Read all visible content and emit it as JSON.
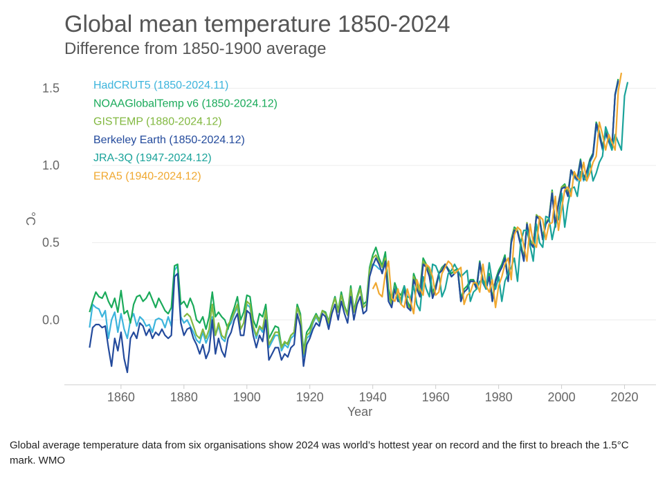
{
  "caption": "Global average temperature data from six organisations show 2024 was world’s hottest year on record and the first to breach the 1.5°C mark. WMO",
  "chart_data": {
    "type": "line",
    "title": "Global mean temperature 1850-2024",
    "subtitle": "Difference from 1850-1900 average",
    "xlabel": "Year",
    "ylabel": "°C",
    "xlim": [
      1842,
      2030
    ],
    "ylim": [
      -0.42,
      1.65
    ],
    "xticks": [
      1860,
      1880,
      1900,
      1920,
      1940,
      1960,
      1980,
      2000,
      2020
    ],
    "yticks": [
      0.0,
      0.5,
      1.0,
      1.5
    ],
    "ytick_labels": [
      "0.0",
      "0.5",
      "1.0",
      "1.5"
    ],
    "grid": "horizontal",
    "legend_position": "top-left",
    "series": [
      {
        "name": "HadCRUT5 (1850-2024.11)",
        "color": "#3cb4dc",
        "start": 1850,
        "values": [
          -0.05,
          0.1,
          0.08,
          0.07,
          0.02,
          0.06,
          -0.12,
          0.0,
          0.05,
          -0.08,
          0.04,
          -0.06,
          -0.12,
          0.0,
          0.04,
          -0.04,
          0.02,
          0.0,
          -0.04,
          -0.03,
          -0.08,
          0.0,
          0.01,
          0.0,
          -0.05,
          0.02,
          -0.04,
          0.32,
          0.35,
          0.02,
          -0.02,
          0.0,
          -0.04,
          -0.08,
          -0.13,
          -0.15,
          -0.08,
          -0.15,
          -0.1,
          0.02,
          -0.1,
          -0.04,
          -0.12,
          -0.14,
          -0.05,
          -0.02,
          0.04,
          0.08,
          -0.06,
          -0.02,
          0.1,
          0.08,
          -0.05,
          -0.12,
          -0.05,
          -0.08,
          0.05,
          -0.18,
          -0.14,
          -0.1,
          -0.1,
          -0.2,
          -0.16,
          -0.18,
          -0.12,
          -0.1,
          0.08,
          0.02,
          -0.24,
          -0.12,
          -0.1,
          -0.02,
          0.02,
          -0.02,
          0.06,
          0.04,
          -0.04,
          0.08,
          0.15,
          0.05,
          0.16,
          0.08,
          0.03,
          0.2,
          0.05,
          0.14,
          0.2,
          0.08,
          0.1,
          0.32,
          0.36,
          0.35,
          0.33,
          0.32,
          0.36,
          0.15,
          0.1,
          0.22,
          0.15,
          0.14,
          0.22,
          0.1,
          0.06,
          0.28,
          0.2,
          0.15,
          0.36,
          0.35,
          0.3,
          0.15,
          0.2,
          0.3,
          0.32,
          0.36,
          0.32,
          0.28,
          0.3,
          0.32,
          0.12,
          0.18,
          0.2,
          0.25,
          0.25,
          0.2,
          0.37,
          0.24,
          0.2,
          0.28,
          0.12,
          0.25,
          0.3,
          0.34,
          0.4,
          0.25,
          0.5,
          0.58,
          0.58,
          0.48,
          0.38,
          0.62,
          0.5,
          0.47,
          0.67,
          0.66,
          0.52,
          0.62,
          0.65,
          0.82,
          0.6,
          0.75,
          0.85,
          0.86,
          0.8,
          0.96,
          0.92,
          0.9,
          1.02,
          0.9,
          0.95,
          1.02,
          1.06,
          1.25,
          1.19,
          1.1,
          1.2,
          1.15,
          1.1,
          1.45,
          1.54
        ]
      },
      {
        "name": "NOAAGlobalTemp v6 (1850-2024.12)",
        "color": "#1aaa5a",
        "start": 1850,
        "values": [
          0.05,
          0.12,
          0.18,
          0.15,
          0.14,
          0.18,
          0.12,
          0.08,
          0.14,
          0.05,
          0.19,
          0.04,
          0.06,
          -0.02,
          0.1,
          0.15,
          0.16,
          0.12,
          0.14,
          0.18,
          0.13,
          0.08,
          0.14,
          0.1,
          0.06,
          0.04,
          0.08,
          0.35,
          0.36,
          0.1,
          0.12,
          0.08,
          0.14,
          0.09,
          0.0,
          -0.02,
          0.02,
          -0.06,
          0.02,
          0.18,
          0.02,
          0.05,
          0.02,
          0.0,
          -0.06,
          0.02,
          0.08,
          0.15,
          0.0,
          0.05,
          0.16,
          0.15,
          0.0,
          -0.05,
          0.04,
          0.02,
          0.1,
          -0.12,
          -0.08,
          -0.04,
          -0.05,
          -0.17,
          -0.15,
          -0.15,
          -0.1,
          -0.08,
          0.1,
          0.04,
          -0.2,
          -0.08,
          -0.05,
          0.0,
          0.04,
          0.0,
          0.06,
          0.05,
          -0.01,
          0.08,
          0.15,
          0.06,
          0.18,
          0.09,
          0.04,
          0.22,
          0.06,
          0.15,
          0.22,
          0.1,
          0.12,
          0.34,
          0.42,
          0.47,
          0.4,
          0.35,
          0.44,
          0.2,
          0.12,
          0.24,
          0.18,
          0.16,
          0.22,
          0.12,
          0.08,
          0.3,
          0.24,
          0.2,
          0.4,
          0.36,
          0.32,
          0.18,
          0.22,
          0.3,
          0.34,
          0.36,
          0.33,
          0.3,
          0.32,
          0.33,
          0.14,
          0.2,
          0.22,
          0.26,
          0.26,
          0.22,
          0.38,
          0.26,
          0.22,
          0.3,
          0.14,
          0.26,
          0.32,
          0.36,
          0.42,
          0.26,
          0.52,
          0.6,
          0.58,
          0.5,
          0.4,
          0.62,
          0.52,
          0.48,
          0.68,
          0.66,
          0.54,
          0.62,
          0.66,
          0.84,
          0.62,
          0.76,
          0.86,
          0.88,
          0.82,
          0.97,
          0.94,
          0.92,
          1.04,
          0.92,
          0.96,
          1.04,
          1.08,
          1.28,
          1.22,
          1.12,
          1.22,
          1.16,
          1.12,
          1.46,
          1.56
        ]
      },
      {
        "name": "GISTEMP (1880-2024.12)",
        "color": "#82b840",
        "start": 1880,
        "values": [
          0.02,
          0.04,
          0.02,
          -0.04,
          -0.1,
          -0.12,
          -0.06,
          -0.12,
          -0.06,
          0.1,
          -0.1,
          -0.02,
          -0.1,
          -0.12,
          -0.03,
          0.0,
          0.05,
          0.1,
          -0.06,
          -0.02,
          0.12,
          0.1,
          -0.04,
          -0.1,
          -0.04,
          -0.06,
          0.06,
          -0.16,
          -0.12,
          -0.08,
          -0.08,
          -0.18,
          -0.14,
          -0.16,
          -0.1,
          -0.08,
          0.08,
          0.02,
          -0.22,
          -0.1,
          -0.08,
          -0.01,
          0.03,
          -0.01,
          0.06,
          0.04,
          -0.02,
          0.08,
          0.14,
          0.05,
          0.16,
          0.08,
          0.03,
          0.2,
          0.05,
          0.14,
          0.2,
          0.08,
          0.1,
          0.32,
          0.4,
          0.42,
          0.38,
          0.34,
          0.4,
          0.16,
          0.1,
          0.22,
          0.15,
          0.14,
          0.22,
          0.1,
          0.06,
          0.28,
          0.22,
          0.17,
          0.38,
          0.35,
          0.3,
          0.16,
          0.2,
          0.3,
          0.33,
          0.36,
          0.32,
          0.28,
          0.3,
          0.32,
          0.12,
          0.18,
          0.2,
          0.25,
          0.25,
          0.2,
          0.37,
          0.24,
          0.2,
          0.28,
          0.12,
          0.25,
          0.3,
          0.34,
          0.4,
          0.25,
          0.51,
          0.59,
          0.58,
          0.49,
          0.39,
          0.63,
          0.51,
          0.48,
          0.68,
          0.66,
          0.53,
          0.63,
          0.66,
          0.83,
          0.61,
          0.76,
          0.86,
          0.87,
          0.81,
          0.97,
          0.93,
          0.91,
          1.03,
          0.91,
          0.96,
          1.03,
          1.07,
          1.27,
          1.21,
          1.11,
          1.21,
          1.16,
          1.11,
          1.46,
          1.55
        ]
      },
      {
        "name": "Berkeley Earth (1850-2024.12)",
        "color": "#234a9c",
        "start": 1850,
        "values": [
          -0.18,
          -0.05,
          -0.03,
          -0.03,
          -0.05,
          -0.04,
          -0.18,
          -0.3,
          -0.12,
          -0.2,
          -0.08,
          -0.25,
          -0.34,
          -0.12,
          -0.08,
          -0.12,
          -0.02,
          -0.04,
          -0.1,
          -0.06,
          -0.12,
          -0.08,
          -0.1,
          -0.06,
          -0.1,
          -0.12,
          -0.1,
          0.28,
          0.3,
          -0.02,
          -0.1,
          -0.06,
          -0.05,
          -0.12,
          -0.16,
          -0.22,
          -0.16,
          -0.25,
          -0.2,
          0.0,
          -0.22,
          -0.12,
          -0.2,
          -0.24,
          -0.12,
          -0.08,
          0.0,
          0.04,
          -0.1,
          -0.1,
          0.06,
          0.04,
          -0.1,
          -0.18,
          -0.1,
          -0.14,
          0.0,
          -0.26,
          -0.22,
          -0.18,
          -0.18,
          -0.26,
          -0.22,
          -0.24,
          -0.18,
          -0.16,
          0.04,
          -0.04,
          -0.3,
          -0.16,
          -0.12,
          -0.06,
          -0.02,
          -0.04,
          0.04,
          0.02,
          -0.06,
          0.04,
          0.1,
          0.0,
          0.12,
          0.04,
          -0.02,
          0.15,
          0.0,
          0.1,
          0.15,
          0.04,
          0.06,
          0.28,
          0.35,
          0.4,
          0.36,
          0.3,
          0.38,
          0.12,
          0.08,
          0.2,
          0.12,
          0.12,
          0.2,
          0.08,
          0.06,
          0.26,
          0.2,
          0.15,
          0.36,
          0.34,
          0.28,
          0.14,
          0.2,
          0.3,
          0.32,
          0.36,
          0.32,
          0.28,
          0.3,
          0.32,
          0.12,
          0.18,
          0.2,
          0.25,
          0.25,
          0.2,
          0.37,
          0.24,
          0.2,
          0.28,
          0.12,
          0.25,
          0.3,
          0.34,
          0.4,
          0.25,
          0.5,
          0.58,
          0.57,
          0.48,
          0.38,
          0.62,
          0.5,
          0.47,
          0.67,
          0.65,
          0.52,
          0.62,
          0.65,
          0.82,
          0.6,
          0.75,
          0.85,
          0.86,
          0.8,
          0.97,
          0.93,
          0.91,
          1.03,
          0.91,
          0.96,
          1.03,
          1.07,
          1.27,
          1.2,
          1.11,
          1.21,
          1.16,
          1.11,
          1.46,
          1.55
        ]
      },
      {
        "name": "JRA-3Q (1947-2024.12)",
        "color": "#1aa39a",
        "start": 1947,
        "values": [
          0.22,
          0.14,
          0.1,
          0.22,
          0.15,
          0.14,
          0.22,
          0.1,
          0.06,
          0.28,
          0.2,
          0.15,
          0.36,
          0.35,
          0.3,
          0.15,
          0.2,
          0.3,
          0.32,
          0.36,
          0.32,
          0.28,
          0.3,
          0.32,
          0.12,
          0.18,
          0.2,
          0.25,
          0.25,
          0.2,
          0.37,
          0.24,
          0.2,
          0.28,
          0.12,
          0.25,
          0.3,
          0.34,
          0.4,
          0.25,
          0.5,
          0.58,
          0.58,
          0.48,
          0.38,
          0.62,
          0.5,
          0.47,
          0.67,
          0.66,
          0.52,
          0.62,
          0.65,
          0.82,
          0.6,
          0.75,
          0.85,
          0.86,
          0.8,
          0.96,
          0.92,
          0.9,
          1.02,
          0.9,
          0.95,
          1.02,
          1.06,
          1.25,
          1.19,
          1.1,
          1.2,
          1.15,
          1.1,
          1.45,
          1.54
        ]
      },
      {
        "name": "ERA5 (1940-2024.12)",
        "color": "#f0a830",
        "start": 1940,
        "values": [
          0.2,
          0.24,
          0.17,
          0.15,
          0.3,
          0.38,
          0.14,
          0.12,
          0.2,
          0.1,
          0.08,
          0.2,
          0.12,
          0.04,
          0.26,
          0.2,
          0.16,
          0.36,
          0.34,
          0.28,
          0.16,
          0.18,
          0.3,
          0.34,
          0.38,
          0.36,
          0.3,
          0.32,
          0.34,
          0.1,
          0.16,
          0.18,
          0.24,
          0.24,
          0.18,
          0.36,
          0.22,
          0.18,
          0.26,
          0.08,
          0.22,
          0.28,
          0.36,
          0.4,
          0.26,
          0.55,
          0.6,
          0.58,
          0.48,
          0.38,
          0.62,
          0.5,
          0.47,
          0.67,
          0.65,
          0.52,
          0.62,
          0.63,
          0.8,
          0.58,
          0.72,
          0.84,
          0.86,
          0.8,
          0.96,
          0.92,
          0.9,
          1.02,
          0.9,
          0.95,
          1.02,
          1.06,
          1.28,
          1.2,
          1.1,
          1.2,
          1.15,
          1.1,
          1.48,
          1.6
        ]
      }
    ]
  }
}
